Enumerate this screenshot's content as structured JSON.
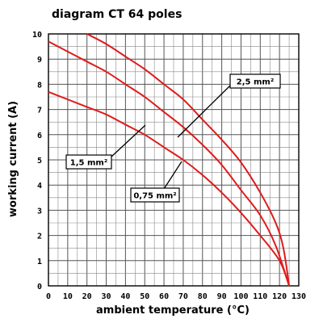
{
  "chart_data": {
    "type": "line",
    "title": "diagram CT 64 poles",
    "xlabel": "ambient temperature (°C)",
    "ylabel": "working current (A)",
    "xlim": [
      0,
      130
    ],
    "ylim": [
      0,
      10
    ],
    "x_ticks": [
      "0",
      "10",
      "20",
      "30",
      "40",
      "50",
      "60",
      "70",
      "80",
      "90",
      "100",
      "110",
      "120",
      "130"
    ],
    "y_ticks": [
      "0",
      "1",
      "2",
      "3",
      "4",
      "5",
      "6",
      "7",
      "8",
      "9",
      "10"
    ],
    "grid": true,
    "minor_grid": true,
    "line_color": "#e01b1b",
    "series": [
      {
        "name": "2,5 mm²",
        "points": [
          [
            20,
            10.0
          ],
          [
            30,
            9.6
          ],
          [
            40,
            9.1
          ],
          [
            50,
            8.6
          ],
          [
            60,
            8.0
          ],
          [
            70,
            7.4
          ],
          [
            80,
            6.6
          ],
          [
            90,
            5.8
          ],
          [
            100,
            4.9
          ],
          [
            110,
            3.7
          ],
          [
            118,
            2.5
          ],
          [
            122,
            1.5
          ],
          [
            125,
            0.0
          ]
        ]
      },
      {
        "name": "1,5 mm²",
        "points": [
          [
            0,
            9.7
          ],
          [
            10,
            9.3
          ],
          [
            20,
            8.9
          ],
          [
            30,
            8.5
          ],
          [
            40,
            8.0
          ],
          [
            50,
            7.5
          ],
          [
            60,
            6.9
          ],
          [
            70,
            6.3
          ],
          [
            80,
            5.6
          ],
          [
            90,
            4.8
          ],
          [
            100,
            3.8
          ],
          [
            110,
            2.8
          ],
          [
            118,
            1.6
          ],
          [
            125,
            0.0
          ]
        ]
      },
      {
        "name": "0,75 mm²",
        "points": [
          [
            0,
            7.7
          ],
          [
            10,
            7.4
          ],
          [
            20,
            7.1
          ],
          [
            30,
            6.8
          ],
          [
            40,
            6.4
          ],
          [
            50,
            6.0
          ],
          [
            60,
            5.5
          ],
          [
            70,
            5.0
          ],
          [
            80,
            4.4
          ],
          [
            90,
            3.7
          ],
          [
            100,
            2.9
          ],
          [
            110,
            2.0
          ],
          [
            120,
            1.0
          ],
          [
            125,
            0.0
          ]
        ]
      }
    ],
    "callouts": [
      {
        "label": "2,5 mm²",
        "series": 0
      },
      {
        "label": "1,5 mm²",
        "series": 1
      },
      {
        "label": "0,75 mm²",
        "series": 2
      }
    ]
  }
}
